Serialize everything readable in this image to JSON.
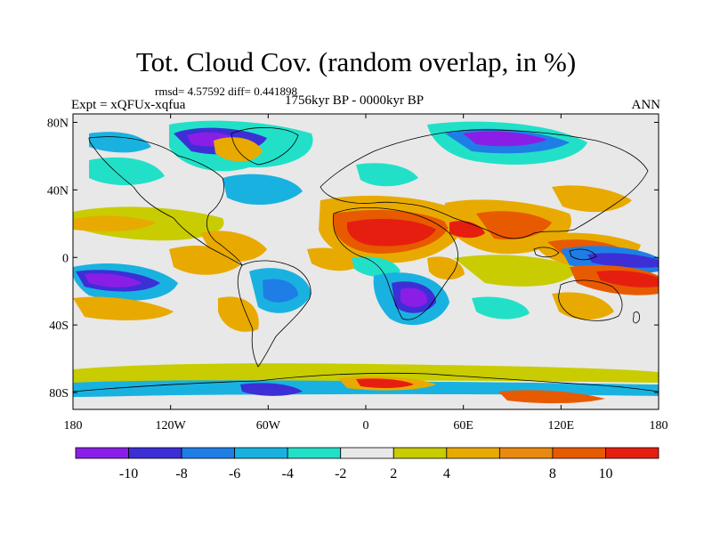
{
  "title": "Tot. Cloud Cov. (random overlap, in %)",
  "stats": "rmsd= 4.57592 diff= 0.441898",
  "experiment": "Expt = xQFUx-xqfua",
  "period": "1756kyr BP - 0000kyr BP",
  "season": "ANN",
  "lat_ticks": [
    {
      "label": "80N",
      "value": 80
    },
    {
      "label": "40N",
      "value": 40
    },
    {
      "label": "0",
      "value": 0
    },
    {
      "label": "40S",
      "value": -40
    },
    {
      "label": "80S",
      "value": -80
    }
  ],
  "lon_ticks": [
    {
      "label": "180",
      "value": -180
    },
    {
      "label": "120W",
      "value": -120
    },
    {
      "label": "60W",
      "value": -60
    },
    {
      "label": "0",
      "value": 0
    },
    {
      "label": "60E",
      "value": 60
    },
    {
      "label": "120E",
      "value": 120
    },
    {
      "label": "180",
      "value": 180
    }
  ],
  "colorbar": {
    "colors": [
      "#8a1ee6",
      "#3c2fd6",
      "#1f7ee6",
      "#19b2e0",
      "#22e0c8",
      "#e8e8e8",
      "#c8cc00",
      "#e8aa00",
      "#e88a10",
      "#e85a00",
      "#e61e10"
    ],
    "labels": [
      "-10",
      "-8",
      "-6",
      "-4",
      "-2",
      "2",
      "4",
      "8",
      "10"
    ]
  }
}
